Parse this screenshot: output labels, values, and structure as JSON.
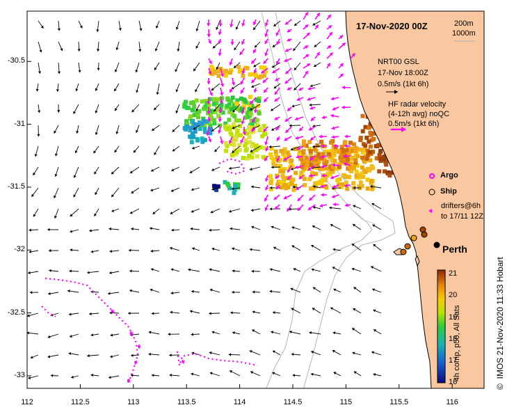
{
  "title": "17-Nov-2020 00Z",
  "depth_legend": [
    "200m",
    "1000m"
  ],
  "city": "Perth",
  "axes": {
    "x_ticks": [
      "112",
      "112.5",
      "113",
      "113.5",
      "114",
      "114.5",
      "115",
      "115.5",
      "116"
    ],
    "y_ticks": [
      "-30.5",
      "-31",
      "-31.5",
      "-32",
      "-32.5",
      "-33"
    ],
    "lon_range": [
      112,
      116.3
    ],
    "lat_range": [
      -33.1,
      -30.1
    ]
  },
  "wind_legend": {
    "lines": [
      "NRT00 GSL",
      "17-Nov 18:00Z",
      "0.5m/s (1kt 6h)"
    ]
  },
  "radar_legend": {
    "lines": [
      "HF radar velocity",
      "(4-12h avg) noQC",
      "0.5m/s (1kt 6h)"
    ]
  },
  "symbols": {
    "argo": "Argo",
    "ship": "Ship",
    "drifters": [
      "drifters@6h",
      "to 17/11 12Z"
    ]
  },
  "colorbar": {
    "ticks": [
      "21",
      "20",
      "19",
      "18",
      "17",
      "16"
    ],
    "min": 16,
    "max": 21.2,
    "title": "4h comp, p50, All Sats"
  },
  "credit": "IMOS 21-Nov-2020 11:33 Hobart",
  "copyright": "©",
  "colors": {
    "land": "#f9c8a0",
    "arrow_magenta": "#ff00ff",
    "arrow_black": "#000000",
    "bathy": "#b4b4b4"
  }
}
